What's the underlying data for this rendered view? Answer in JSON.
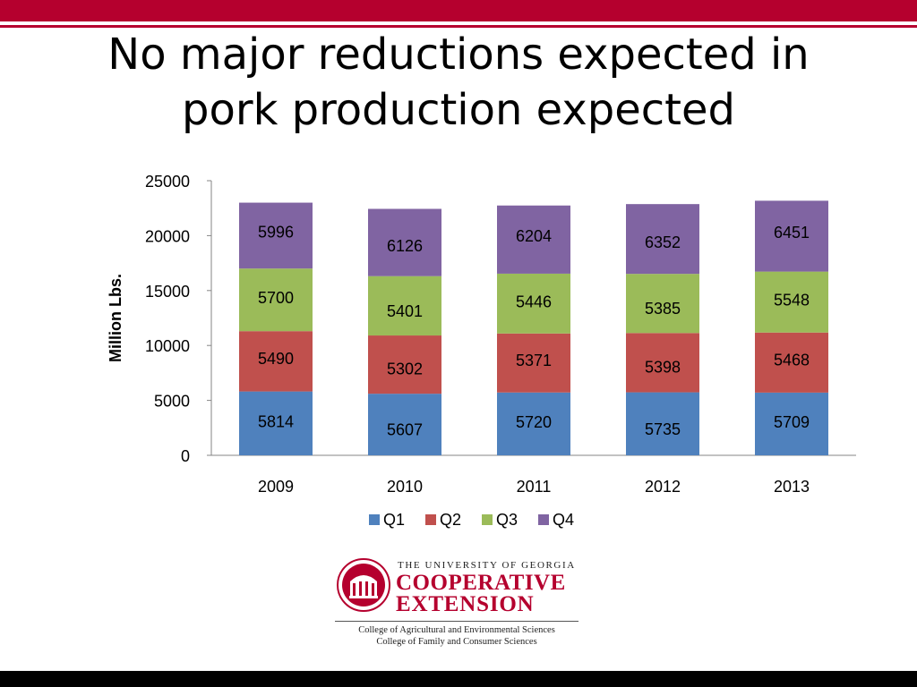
{
  "slide": {
    "title_lines": [
      "No major reductions expected in",
      "pork production expected"
    ]
  },
  "chart_data": {
    "type": "bar",
    "stacked": true,
    "categories": [
      "2009",
      "2010",
      "2011",
      "2012",
      "2013"
    ],
    "series": [
      {
        "name": "Q1",
        "color": "#4f81bd",
        "values": [
          5814,
          5607,
          5720,
          5735,
          5709
        ]
      },
      {
        "name": "Q2",
        "color": "#c0504d",
        "values": [
          5490,
          5302,
          5371,
          5398,
          5468
        ]
      },
      {
        "name": "Q3",
        "color": "#9bbb59",
        "values": [
          5700,
          5401,
          5446,
          5385,
          5548
        ]
      },
      {
        "name": "Q4",
        "color": "#8064a2",
        "values": [
          5996,
          6126,
          6204,
          6352,
          6451
        ]
      }
    ],
    "ylabel": "Million Lbs.",
    "xlabel": "",
    "ylim": [
      0,
      25000
    ],
    "yticks": [
      0,
      5000,
      10000,
      15000,
      20000,
      25000
    ],
    "legend_position": "bottom",
    "grid": false
  },
  "logo": {
    "university": "THE UNIVERSITY OF GEORGIA",
    "line1": "COOPERATIVE",
    "line2": "EXTENSION",
    "college1": "College of Agricultural and Environmental Sciences",
    "college2": "College of Family and Consumer Sciences",
    "brand_color": "#b5002e"
  }
}
